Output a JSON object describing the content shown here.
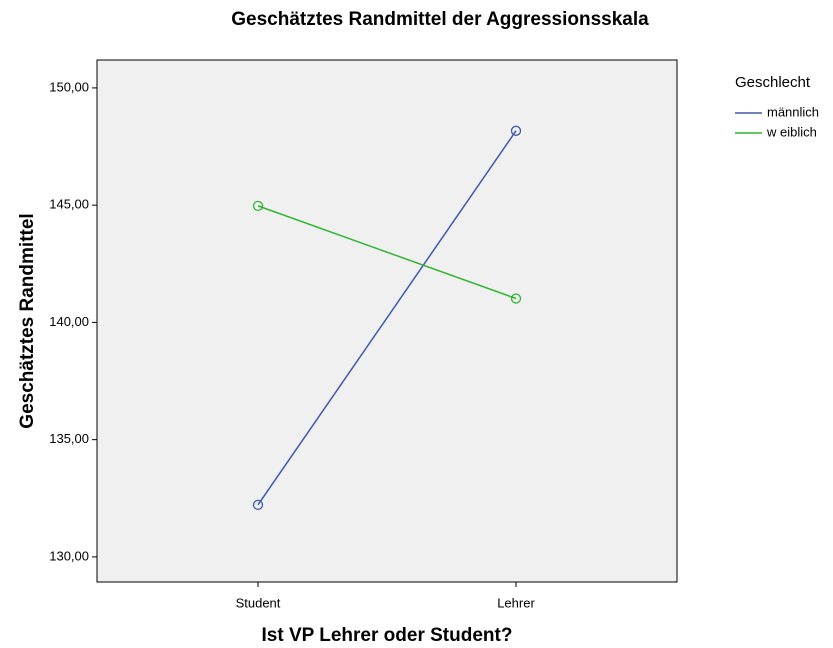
{
  "chart_data": {
    "type": "line",
    "title": "Geschätztes Randmittel der Aggressionsskala",
    "x_label": "Ist VP Lehrer oder Student?",
    "y_label": "Geschätztes Randmittel",
    "categories": [
      "Student",
      "Lehrer"
    ],
    "series": [
      {
        "name": "männlich",
        "color": "#3e58ac",
        "values": [
          132.22,
          148.17
        ]
      },
      {
        "name": "w eiblich",
        "color": "#2fb52f",
        "values": [
          144.97,
          141.02
        ]
      }
    ],
    "ylim": [
      128.93,
      151.19
    ],
    "yticks": [
      {
        "value": 130,
        "label": "130,00"
      },
      {
        "value": 135,
        "label": "135,00"
      },
      {
        "value": 140,
        "label": "140,00"
      },
      {
        "value": 145,
        "label": "145,00"
      },
      {
        "value": 150,
        "label": "150,00"
      }
    ],
    "legend_title": "Geschlecht",
    "legend_position": "right",
    "grid": false
  }
}
